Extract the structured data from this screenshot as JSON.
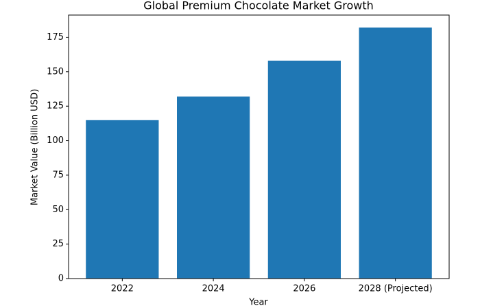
{
  "chart_data": {
    "type": "bar",
    "title": "Global Premium Chocolate Market Growth",
    "x_label": "Year",
    "y_label": "Market Value (Billion USD)",
    "categories": [
      "2022",
      "2024",
      "2026",
      "2028 (Projected)"
    ],
    "values": [
      115,
      132,
      158,
      182
    ],
    "color": "#1f77b4",
    "ylim": [
      0,
      191.1
    ],
    "yticks": [
      0,
      25,
      50,
      75,
      100,
      125,
      150,
      175
    ],
    "grid": false
  }
}
